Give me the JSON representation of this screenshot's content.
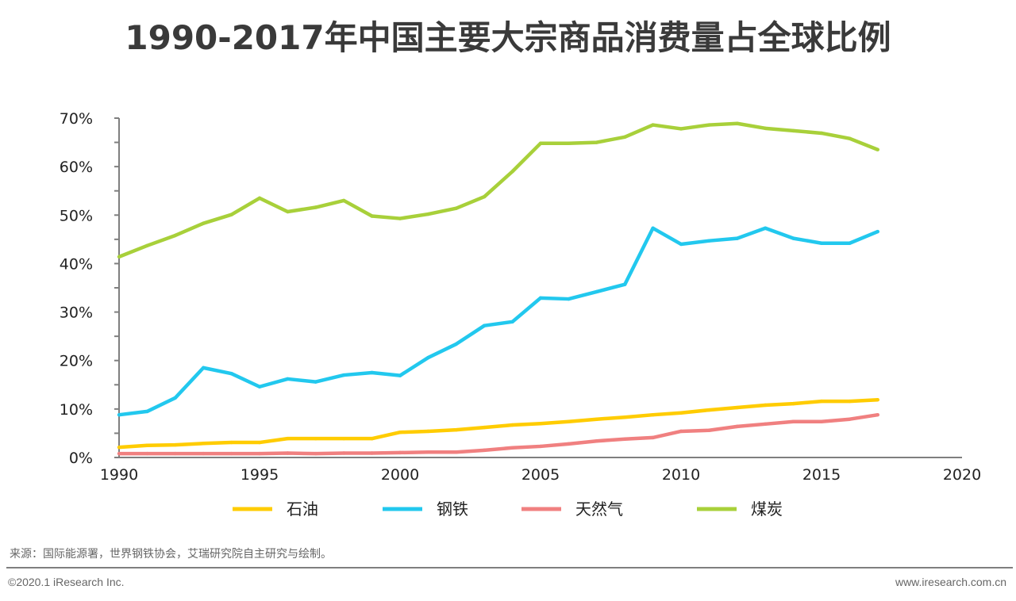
{
  "title": "1990-2017年中国主要大宗商品消费量占全球比例",
  "source": "来源：国际能源署，世界钢铁协会，艾瑞研究院自主研究与绘制。",
  "copyright": "©2020.1 iResearch Inc.",
  "website": "www.iresearch.com.cn",
  "chart_data": {
    "type": "line",
    "title": "1990-2017年中国主要大宗商品消费量占全球比例",
    "xlabel": "",
    "ylabel": "",
    "xlim": [
      1990,
      2020
    ],
    "ylim": [
      0,
      70
    ],
    "x_ticks": [
      1990,
      1995,
      2000,
      2005,
      2010,
      2015,
      2020
    ],
    "y_ticks": [
      "0%",
      "10%",
      "20%",
      "30%",
      "40%",
      "50%",
      "60%",
      "70%"
    ],
    "grid": false,
    "legend_position": "bottom",
    "x": [
      1990,
      1991,
      1992,
      1993,
      1994,
      1995,
      1996,
      1997,
      1998,
      1999,
      2000,
      2001,
      2002,
      2003,
      2004,
      2005,
      2006,
      2007,
      2008,
      2009,
      2010,
      2011,
      2012,
      2013,
      2014,
      2015,
      2016,
      2017
    ],
    "series": [
      {
        "name": "石油",
        "color": "#FFCC00",
        "values": [
          2.1,
          2.5,
          2.6,
          2.9,
          3.1,
          3.1,
          3.9,
          3.9,
          3.9,
          3.9,
          5.2,
          5.4,
          5.7,
          6.2,
          6.7,
          7.0,
          7.4,
          7.9,
          8.3,
          8.8,
          9.2,
          9.8,
          10.3,
          10.8,
          11.1,
          11.6,
          11.6,
          11.9
        ]
      },
      {
        "name": "钢铁",
        "color": "#22C8EE",
        "values": [
          8.8,
          9.5,
          12.3,
          18.5,
          17.3,
          14.6,
          16.2,
          15.6,
          17.0,
          17.5,
          16.9,
          20.6,
          23.4,
          27.2,
          28.0,
          32.9,
          32.7,
          34.2,
          35.7,
          47.3,
          44.0,
          44.7,
          45.2,
          47.3,
          45.2,
          44.2,
          44.2,
          46.6
        ]
      },
      {
        "name": "天然气",
        "color": "#F08080",
        "values": [
          0.8,
          0.8,
          0.8,
          0.8,
          0.8,
          0.8,
          0.9,
          0.8,
          0.9,
          0.9,
          1.0,
          1.1,
          1.1,
          1.5,
          2.0,
          2.3,
          2.8,
          3.4,
          3.8,
          4.1,
          5.4,
          5.6,
          6.4,
          6.9,
          7.4,
          7.4,
          7.9,
          8.8
        ]
      },
      {
        "name": "煤炭",
        "color": "#A8D03A",
        "values": [
          41.4,
          43.7,
          45.8,
          48.3,
          50.1,
          53.5,
          50.7,
          51.6,
          53.0,
          49.8,
          49.3,
          50.2,
          51.4,
          53.8,
          59.0,
          64.8,
          64.8,
          65.0,
          66.1,
          68.6,
          67.8,
          68.6,
          68.9,
          67.9,
          67.4,
          66.9,
          65.8,
          63.5
        ]
      }
    ]
  }
}
